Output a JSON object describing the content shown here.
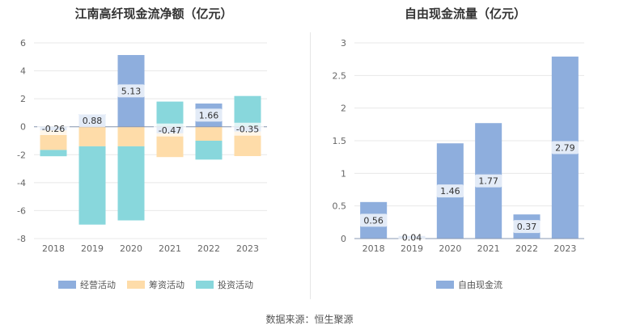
{
  "chart_data": [
    {
      "type": "bar",
      "stacked": true,
      "title": "江南高纤现金流净额（亿元）",
      "categories": [
        "2018",
        "2019",
        "2020",
        "2021",
        "2022",
        "2023"
      ],
      "yticks": [
        6,
        4,
        2,
        0,
        -2,
        -4,
        -6,
        -8
      ],
      "ylim": [
        -8,
        6
      ],
      "grid": true,
      "legend": "bottom",
      "series": [
        {
          "name": "经营活动",
          "color": "#8eaedd",
          "values": [
            -0.26,
            0.88,
            5.13,
            -0.47,
            1.66,
            -0.35
          ],
          "labels": [
            "-0.26",
            "0.88",
            "5.13",
            "-0.47",
            "1.66",
            "-0.35"
          ]
        },
        {
          "name": "筹资活动",
          "color": "#fedca9",
          "values": [
            -1.4,
            -1.4,
            -1.4,
            -1.7,
            -1.0,
            -1.75
          ]
        },
        {
          "name": "投资活动",
          "color": "#88d7dc",
          "values": [
            -0.45,
            -5.6,
            -5.3,
            1.8,
            -1.35,
            2.2
          ]
        }
      ]
    },
    {
      "type": "bar",
      "title": "自由现金流量（亿元）",
      "categories": [
        "2018",
        "2019",
        "2020",
        "2021",
        "2022",
        "2023"
      ],
      "yticks": [
        3,
        2.5,
        2,
        1.5,
        1,
        0.5,
        0
      ],
      "ylim": [
        0,
        3
      ],
      "grid": true,
      "legend": "bottom",
      "series": [
        {
          "name": "自由现金流",
          "color": "#8eaedd",
          "values": [
            0.56,
            0.04,
            1.46,
            1.77,
            0.37,
            2.79
          ],
          "labels": [
            "0.56",
            "0.04",
            "1.46",
            "1.77",
            "0.37",
            "2.79"
          ]
        }
      ]
    }
  ],
  "source": "数据来源：恒生聚源"
}
